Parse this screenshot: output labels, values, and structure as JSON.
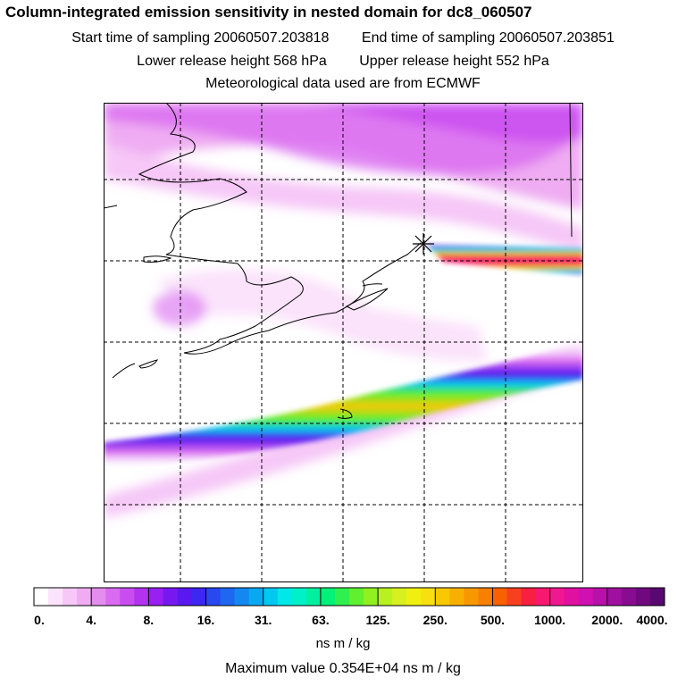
{
  "header": {
    "title": "Column-integrated emission sensitivity in nested domain for dc8_060507",
    "start_time": "Start time of sampling 20060507.203818",
    "end_time": "End time of sampling 20060507.203851",
    "lower_release": "Lower release height  568 hPa",
    "upper_release": "Upper release height  552 hPa",
    "met_data": "Meteorological data used are from ECMWF"
  },
  "colorbar": {
    "labels": [
      "0.",
      "4.",
      "8.",
      "16.",
      "31.",
      "63.",
      "125.",
      "250.",
      "500.",
      "1000.",
      "2000.",
      "4000."
    ],
    "colors": [
      "#ffffff",
      "#fbe3fb",
      "#f6c7f7",
      "#efacf2",
      "#e58cef",
      "#d96bf0",
      "#c84cf0",
      "#b232f0",
      "#9820f0",
      "#7818f0",
      "#5a18f0",
      "#3c28f0",
      "#2848f0",
      "#1e68f0",
      "#1488f0",
      "#0aa8f0",
      "#00c8f0",
      "#00e8e8",
      "#00f0c8",
      "#00f0a0",
      "#00f078",
      "#30f050",
      "#60f030",
      "#90f020",
      "#b8f020",
      "#d8f020",
      "#f0f010",
      "#f8e010",
      "#f8c800",
      "#f8b000",
      "#f89800",
      "#f88000",
      "#f86000",
      "#f84020",
      "#f82040",
      "#f81870",
      "#f01890",
      "#e010a0",
      "#d010b0",
      "#b810a8",
      "#a010a0",
      "#880c90",
      "#700880",
      "#580870"
    ],
    "unit": "ns m / kg"
  },
  "footer": {
    "max_value": "Maximum value  0.354E+04 ns m / kg"
  },
  "map": {
    "release_marker": "release-location-star"
  }
}
